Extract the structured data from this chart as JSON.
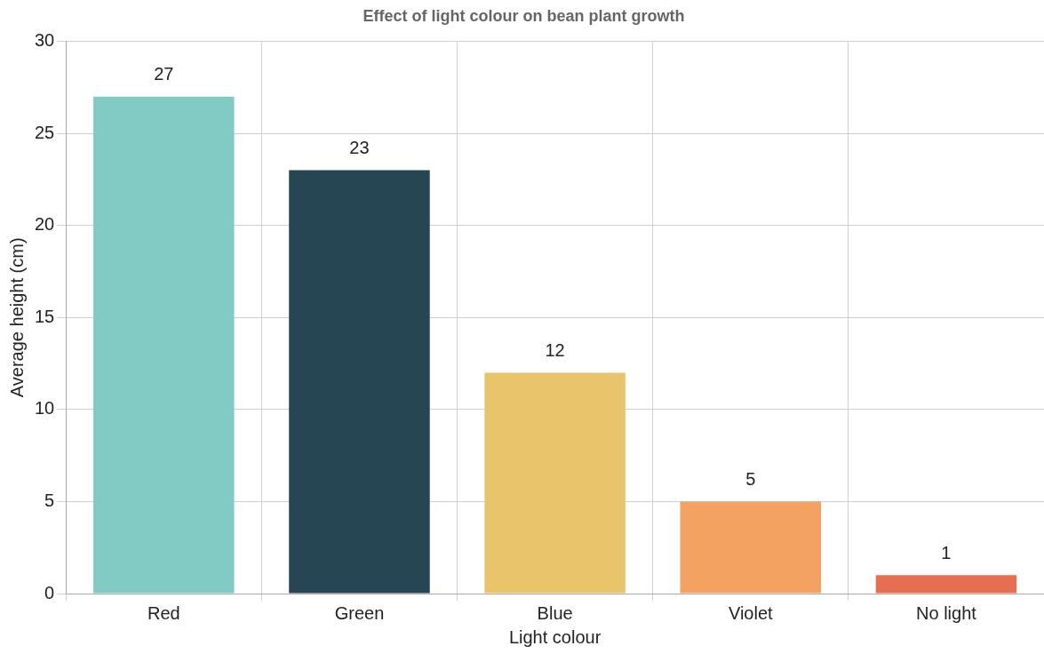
{
  "chart_data": {
    "type": "bar",
    "title": "Effect of light colour on bean plant growth",
    "xlabel": "Light colour",
    "ylabel": "Average height (cm)",
    "categories": [
      "Red",
      "Green",
      "Blue",
      "Violet",
      "No light"
    ],
    "values": [
      27,
      23,
      12,
      5,
      1
    ],
    "colors": [
      "#82cbc4",
      "#264653",
      "#e9c46a",
      "#f4a261",
      "#e76f51"
    ],
    "ylim": [
      0,
      30
    ],
    "yticks": [
      0,
      5,
      10,
      15,
      20,
      25,
      30
    ],
    "grid": true,
    "data_labels": true
  }
}
